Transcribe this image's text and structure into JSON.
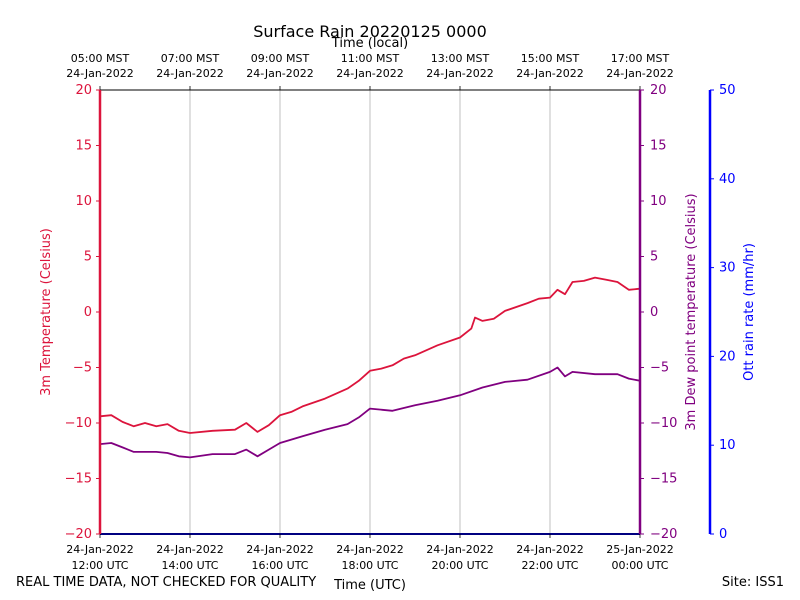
{
  "chart_data": {
    "type": "line",
    "title": "Surface Rain 20220125 0000",
    "top_axis_label": "Time (local)",
    "xlabel": "Time (UTC)",
    "x_ticks_utc": [
      {
        "date": "24-Jan-2022",
        "time": "12:00 UTC"
      },
      {
        "date": "24-Jan-2022",
        "time": "14:00 UTC"
      },
      {
        "date": "24-Jan-2022",
        "time": "16:00 UTC"
      },
      {
        "date": "24-Jan-2022",
        "time": "18:00 UTC"
      },
      {
        "date": "24-Jan-2022",
        "time": "20:00 UTC"
      },
      {
        "date": "24-Jan-2022",
        "time": "22:00 UTC"
      },
      {
        "date": "25-Jan-2022",
        "time": "00:00 UTC"
      }
    ],
    "x_ticks_local": [
      {
        "time": "05:00 MST",
        "date": "24-Jan-2022"
      },
      {
        "time": "07:00 MST",
        "date": "24-Jan-2022"
      },
      {
        "time": "09:00 MST",
        "date": "24-Jan-2022"
      },
      {
        "time": "11:00 MST",
        "date": "24-Jan-2022"
      },
      {
        "time": "13:00 MST",
        "date": "24-Jan-2022"
      },
      {
        "time": "15:00 MST",
        "date": "24-Jan-2022"
      },
      {
        "time": "17:00 MST",
        "date": "24-Jan-2022"
      }
    ],
    "x_range": [
      "2022-01-24 12:00 UTC",
      "2022-01-25 00:00 UTC"
    ],
    "grid": "vertical lines at x ticks",
    "axes": {
      "left": {
        "label": "3m Temperature (Celsius)",
        "color": "#dc143c",
        "ylim": [
          -20,
          20
        ],
        "ticks": [
          20,
          15,
          10,
          5,
          0,
          -5,
          -10,
          -15,
          -20
        ]
      },
      "right1": {
        "label": "3m Dew point temperature (Celsius)",
        "color": "#800080",
        "ylim": [
          -20,
          20
        ],
        "ticks": [
          20,
          15,
          10,
          5,
          0,
          -5,
          -10,
          -15,
          -20
        ]
      },
      "right2": {
        "label": "Ott rain rate (mm/hr)",
        "color": "#0000ff",
        "ylim": [
          0,
          50
        ],
        "ticks": [
          50,
          40,
          30,
          20,
          10,
          0
        ]
      }
    },
    "series": [
      {
        "name": "3m Temperature (Celsius)",
        "color": "#dc143c",
        "axis": "left",
        "points": [
          [
            "2022-01-24 12:00",
            -9.4
          ],
          [
            "2022-01-24 12:15",
            -9.3
          ],
          [
            "2022-01-24 12:30",
            -9.9
          ],
          [
            "2022-01-24 12:45",
            -10.3
          ],
          [
            "2022-01-24 13:00",
            -10.0
          ],
          [
            "2022-01-24 13:15",
            -10.3
          ],
          [
            "2022-01-24 13:30",
            -10.1
          ],
          [
            "2022-01-24 13:45",
            -10.7
          ],
          [
            "2022-01-24 14:00",
            -10.9
          ],
          [
            "2022-01-24 14:30",
            -10.7
          ],
          [
            "2022-01-24 15:00",
            -10.6
          ],
          [
            "2022-01-24 15:15",
            -10.0
          ],
          [
            "2022-01-24 15:30",
            -10.8
          ],
          [
            "2022-01-24 15:45",
            -10.2
          ],
          [
            "2022-01-24 16:00",
            -9.3
          ],
          [
            "2022-01-24 16:15",
            -9.0
          ],
          [
            "2022-01-24 16:30",
            -8.5
          ],
          [
            "2022-01-24 17:00",
            -7.8
          ],
          [
            "2022-01-24 17:30",
            -6.9
          ],
          [
            "2022-01-24 17:45",
            -6.2
          ],
          [
            "2022-01-24 18:00",
            -5.3
          ],
          [
            "2022-01-24 18:15",
            -5.1
          ],
          [
            "2022-01-24 18:30",
            -4.8
          ],
          [
            "2022-01-24 18:45",
            -4.2
          ],
          [
            "2022-01-24 19:00",
            -3.9
          ],
          [
            "2022-01-24 19:30",
            -3.0
          ],
          [
            "2022-01-24 20:00",
            -2.3
          ],
          [
            "2022-01-24 20:15",
            -1.5
          ],
          [
            "2022-01-24 20:20",
            -0.5
          ],
          [
            "2022-01-24 20:30",
            -0.8
          ],
          [
            "2022-01-24 20:45",
            -0.6
          ],
          [
            "2022-01-24 21:00",
            0.1
          ],
          [
            "2022-01-24 21:30",
            0.8
          ],
          [
            "2022-01-24 21:45",
            1.2
          ],
          [
            "2022-01-24 22:00",
            1.3
          ],
          [
            "2022-01-24 22:10",
            2.0
          ],
          [
            "2022-01-24 22:20",
            1.6
          ],
          [
            "2022-01-24 22:30",
            2.7
          ],
          [
            "2022-01-24 22:45",
            2.8
          ],
          [
            "2022-01-24 23:00",
            3.1
          ],
          [
            "2022-01-24 23:15",
            2.9
          ],
          [
            "2022-01-24 23:30",
            2.7
          ],
          [
            "2022-01-24 23:45",
            2.0
          ],
          [
            "2022-01-25 00:00",
            2.1
          ]
        ]
      },
      {
        "name": "3m Dew point temperature (Celsius)",
        "color": "#800080",
        "axis": "right1",
        "points": [
          [
            "2022-01-24 12:00",
            -11.9
          ],
          [
            "2022-01-24 12:15",
            -11.8
          ],
          [
            "2022-01-24 12:30",
            -12.2
          ],
          [
            "2022-01-24 12:45",
            -12.6
          ],
          [
            "2022-01-24 13:00",
            -12.6
          ],
          [
            "2022-01-24 13:15",
            -12.6
          ],
          [
            "2022-01-24 13:30",
            -12.7
          ],
          [
            "2022-01-24 13:45",
            -13.0
          ],
          [
            "2022-01-24 14:00",
            -13.1
          ],
          [
            "2022-01-24 14:30",
            -12.8
          ],
          [
            "2022-01-24 15:00",
            -12.8
          ],
          [
            "2022-01-24 15:15",
            -12.4
          ],
          [
            "2022-01-24 15:30",
            -13.0
          ],
          [
            "2022-01-24 15:45",
            -12.4
          ],
          [
            "2022-01-24 16:00",
            -11.8
          ],
          [
            "2022-01-24 16:30",
            -11.2
          ],
          [
            "2022-01-24 17:00",
            -10.6
          ],
          [
            "2022-01-24 17:30",
            -10.1
          ],
          [
            "2022-01-24 17:45",
            -9.5
          ],
          [
            "2022-01-24 18:00",
            -8.7
          ],
          [
            "2022-01-24 18:30",
            -8.9
          ],
          [
            "2022-01-24 19:00",
            -8.4
          ],
          [
            "2022-01-24 19:30",
            -8.0
          ],
          [
            "2022-01-24 20:00",
            -7.5
          ],
          [
            "2022-01-24 20:30",
            -6.8
          ],
          [
            "2022-01-24 21:00",
            -6.3
          ],
          [
            "2022-01-24 21:30",
            -6.1
          ],
          [
            "2022-01-24 22:00",
            -5.4
          ],
          [
            "2022-01-24 22:10",
            -5.0
          ],
          [
            "2022-01-24 22:20",
            -5.8
          ],
          [
            "2022-01-24 22:30",
            -5.4
          ],
          [
            "2022-01-24 23:00",
            -5.6
          ],
          [
            "2022-01-24 23:30",
            -5.6
          ],
          [
            "2022-01-24 23:45",
            -6.0
          ],
          [
            "2022-01-25 00:00",
            -6.2
          ]
        ]
      },
      {
        "name": "Ott rain rate (mm/hr)",
        "color": "#0000ff",
        "axis": "right2",
        "points": [
          [
            "2022-01-24 12:00",
            0
          ],
          [
            "2022-01-25 00:00",
            0
          ]
        ]
      }
    ]
  },
  "footer": {
    "left": "REAL TIME DATA, NOT CHECKED FOR QUALITY",
    "right": "Site: ISS1"
  }
}
